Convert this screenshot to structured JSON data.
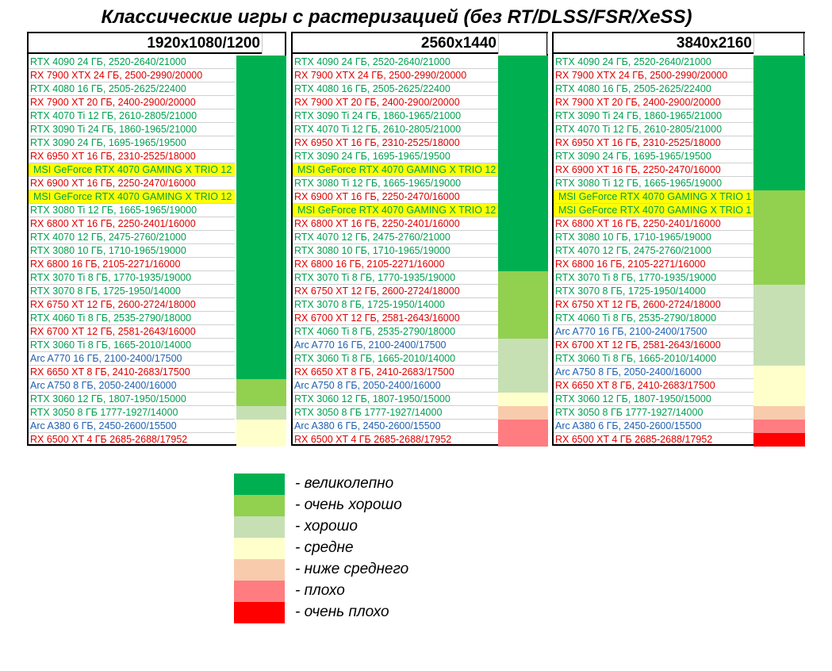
{
  "title": "Классические игры с растеризацией (без RT/DLSS/FSR/XeSS)",
  "colors": {
    "nvidia": "#00a050",
    "amd": "#e00000",
    "intel": "#2060b0",
    "highlight": "#ffff00",
    "excellent": "#00b050",
    "very_good": "#92d050",
    "good": "#c6e0b4",
    "average": "#ffffcc",
    "below_average": "#f8cbad",
    "bad": "#ff7c80",
    "very_bad": "#ff0000"
  },
  "chart_data": {
    "type": "table",
    "panels": [
      {
        "resolution": "1920x1080/1200",
        "rows": [
          {
            "name": "RTX 4090 24 ГБ, 2520-2640/21000",
            "vendor": "nvidia"
          },
          {
            "name": "RX 7900 XTX 24 ГБ, 2500-2990/20000",
            "vendor": "amd"
          },
          {
            "name": "RTX 4080 16 ГБ, 2505-2625/22400",
            "vendor": "nvidia"
          },
          {
            "name": "RX 7900 XT 20 ГБ, 2400-2900/20000",
            "vendor": "amd"
          },
          {
            "name": "RTX 4070 Ti 12 ГБ, 2610-2805/21000",
            "vendor": "nvidia"
          },
          {
            "name": "RTX 3090 Ti 24 ГБ, 1860-1965/21000",
            "vendor": "nvidia"
          },
          {
            "name": "RTX 3090 24 ГБ, 1695-1965/19500",
            "vendor": "nvidia"
          },
          {
            "name": "RX 6950 XT 16 ГБ, 2310-2525/18000",
            "vendor": "amd"
          },
          {
            "name": "MSI GeForce RTX 4070 GAMING X TRIO 12",
            "vendor": "nvidia",
            "highlight": true
          },
          {
            "name": "RX 6900 XT 16 ГБ, 2250-2470/16000",
            "vendor": "amd"
          },
          {
            "name": "MSI GeForce RTX 4070 GAMING X TRIO 12",
            "vendor": "nvidia",
            "highlight": true
          },
          {
            "name": "RTX 3080 Ti 12 ГБ, 1665-1965/19000",
            "vendor": "nvidia"
          },
          {
            "name": "RX 6800 XT 16 ГБ, 2250-2401/16000",
            "vendor": "amd"
          },
          {
            "name": "RTX 4070 12 ГБ, 2475-2760/21000",
            "vendor": "nvidia"
          },
          {
            "name": "RTX 3080 10 ГБ, 1710-1965/19000",
            "vendor": "nvidia"
          },
          {
            "name": "RX 6800 16 ГБ, 2105-2271/16000",
            "vendor": "amd"
          },
          {
            "name": "RTX 3070 Ti 8 ГБ, 1770-1935/19000",
            "vendor": "nvidia"
          },
          {
            "name": "RTX 3070 8 ГБ, 1725-1950/14000",
            "vendor": "nvidia"
          },
          {
            "name": "RX 6750 XT 12 ГБ, 2600-2724/18000",
            "vendor": "amd"
          },
          {
            "name": "RTX 4060 Ti 8 ГБ, 2535-2790/18000",
            "vendor": "nvidia"
          },
          {
            "name": "RX 6700 XT 12 ГБ, 2581-2643/16000",
            "vendor": "amd"
          },
          {
            "name": "RTX 3060 Ti 8 ГБ, 1665-2010/14000",
            "vendor": "nvidia"
          },
          {
            "name": "Arc A770 16 ГБ, 2100-2400/17500",
            "vendor": "intel"
          },
          {
            "name": "RX 6650 XT  8 ГБ, 2410-2683/17500",
            "vendor": "amd"
          },
          {
            "name": "Arc A750 8 ГБ, 2050-2400/16000",
            "vendor": "intel"
          },
          {
            "name": "RTX 3060 12 ГБ, 1807-1950/15000",
            "vendor": "nvidia"
          },
          {
            "name": "RTX 3050 8 ГБ 1777-1927/14000",
            "vendor": "nvidia"
          },
          {
            "name": "Arc A380 6 ГБ, 2450-2600/15500",
            "vendor": "intel"
          },
          {
            "name": "RX 6500 XT 4 ГБ 2685-2688/17952",
            "vendor": "amd"
          }
        ],
        "ratings": [
          {
            "rating": "excellent",
            "from_row": 1,
            "to_row": 24
          },
          {
            "rating": "very_good",
            "from_row": 25,
            "to_row": 26
          },
          {
            "rating": "good",
            "from_row": 27,
            "to_row": 27
          },
          {
            "rating": "average",
            "from_row": 28,
            "to_row": 29
          }
        ]
      },
      {
        "resolution": "2560x1440",
        "rows": [
          {
            "name": "RTX 4090 24 ГБ, 2520-2640/21000",
            "vendor": "nvidia"
          },
          {
            "name": "RX 7900 XTX 24 ГБ, 2500-2990/20000",
            "vendor": "amd"
          },
          {
            "name": "RTX 4080 16 ГБ, 2505-2625/22400",
            "vendor": "nvidia"
          },
          {
            "name": "RX 7900 XT 20 ГБ, 2400-2900/20000",
            "vendor": "amd"
          },
          {
            "name": "RTX 3090 Ti 24 ГБ, 1860-1965/21000",
            "vendor": "nvidia"
          },
          {
            "name": "RTX 4070 Ti 12 ГБ, 2610-2805/21000",
            "vendor": "nvidia"
          },
          {
            "name": "RX 6950 XT 16 ГБ, 2310-2525/18000",
            "vendor": "amd"
          },
          {
            "name": "RTX 3090 24 ГБ, 1695-1965/19500",
            "vendor": "nvidia"
          },
          {
            "name": "MSI GeForce RTX 4070 GAMING X TRIO 12",
            "vendor": "nvidia",
            "highlight": true
          },
          {
            "name": "RTX 3080 Ti 12 ГБ, 1665-1965/19000",
            "vendor": "nvidia"
          },
          {
            "name": "RX 6900 XT 16 ГБ, 2250-2470/16000",
            "vendor": "amd"
          },
          {
            "name": "MSI GeForce RTX 4070 GAMING X TRIO 12",
            "vendor": "nvidia",
            "highlight": true
          },
          {
            "name": "RX 6800 XT 16 ГБ, 2250-2401/16000",
            "vendor": "amd"
          },
          {
            "name": "RTX 4070 12 ГБ, 2475-2760/21000",
            "vendor": "nvidia"
          },
          {
            "name": "RTX 3080 10 ГБ, 1710-1965/19000",
            "vendor": "nvidia"
          },
          {
            "name": "RX 6800 16 ГБ, 2105-2271/16000",
            "vendor": "amd"
          },
          {
            "name": "RTX 3070 Ti 8 ГБ, 1770-1935/19000",
            "vendor": "nvidia"
          },
          {
            "name": "RX 6750 XT 12 ГБ, 2600-2724/18000",
            "vendor": "amd"
          },
          {
            "name": "RTX 3070 8 ГБ, 1725-1950/14000",
            "vendor": "nvidia"
          },
          {
            "name": "RX 6700 XT 12 ГБ, 2581-2643/16000",
            "vendor": "amd"
          },
          {
            "name": "RTX 4060 Ti 8 ГБ, 2535-2790/18000",
            "vendor": "nvidia"
          },
          {
            "name": "Arc A770 16 ГБ, 2100-2400/17500",
            "vendor": "intel"
          },
          {
            "name": "RTX 3060 Ti 8 ГБ, 1665-2010/14000",
            "vendor": "nvidia"
          },
          {
            "name": "RX 6650 XT  8 ГБ, 2410-2683/17500",
            "vendor": "amd"
          },
          {
            "name": "Arc A750 8 ГБ, 2050-2400/16000",
            "vendor": "intel"
          },
          {
            "name": "RTX 3060 12 ГБ, 1807-1950/15000",
            "vendor": "nvidia"
          },
          {
            "name": "RTX 3050 8 ГБ 1777-1927/14000",
            "vendor": "nvidia"
          },
          {
            "name": "Arc A380 6 ГБ, 2450-2600/15500",
            "vendor": "intel"
          },
          {
            "name": "RX 6500 XT 4 ГБ 2685-2688/17952",
            "vendor": "amd"
          }
        ],
        "ratings": [
          {
            "rating": "excellent",
            "from_row": 1,
            "to_row": 16
          },
          {
            "rating": "very_good",
            "from_row": 17,
            "to_row": 21
          },
          {
            "rating": "good",
            "from_row": 22,
            "to_row": 25
          },
          {
            "rating": "average",
            "from_row": 26,
            "to_row": 26
          },
          {
            "rating": "below_average",
            "from_row": 27,
            "to_row": 27
          },
          {
            "rating": "bad",
            "from_row": 28,
            "to_row": 29
          }
        ]
      },
      {
        "resolution": "3840x2160",
        "rows": [
          {
            "name": "RTX 4090 24 ГБ, 2520-2640/21000",
            "vendor": "nvidia"
          },
          {
            "name": "RX 7900 XTX 24 ГБ, 2500-2990/20000",
            "vendor": "amd"
          },
          {
            "name": "RTX 4080 16 ГБ, 2505-2625/22400",
            "vendor": "nvidia"
          },
          {
            "name": "RX 7900 XT 20 ГБ, 2400-2900/20000",
            "vendor": "amd"
          },
          {
            "name": "RTX 3090 Ti 24 ГБ, 1860-1965/21000",
            "vendor": "nvidia"
          },
          {
            "name": "RTX 4070 Ti 12 ГБ, 2610-2805/21000",
            "vendor": "nvidia"
          },
          {
            "name": "RX 6950 XT 16 ГБ, 2310-2525/18000",
            "vendor": "amd"
          },
          {
            "name": "RTX 3090 24 ГБ, 1695-1965/19500",
            "vendor": "nvidia"
          },
          {
            "name": "RX 6900 XT 16 ГБ, 2250-2470/16000",
            "vendor": "amd"
          },
          {
            "name": "RTX 3080 Ti 12 ГБ, 1665-1965/19000",
            "vendor": "nvidia"
          },
          {
            "name": "MSI GeForce RTX 4070 GAMING X TRIO 1",
            "vendor": "nvidia",
            "highlight": true
          },
          {
            "name": "MSI GeForce RTX 4070 GAMING X TRIO 1",
            "vendor": "nvidia",
            "highlight": true
          },
          {
            "name": "RX 6800 XT 16 ГБ, 2250-2401/16000",
            "vendor": "amd"
          },
          {
            "name": "RTX 3080 10 ГБ, 1710-1965/19000",
            "vendor": "nvidia"
          },
          {
            "name": "RTX 4070 12 ГБ, 2475-2760/21000",
            "vendor": "nvidia"
          },
          {
            "name": "RX 6800 16 ГБ, 2105-2271/16000",
            "vendor": "amd"
          },
          {
            "name": "RTX 3070 Ti 8 ГБ, 1770-1935/19000",
            "vendor": "nvidia"
          },
          {
            "name": "RTX 3070 8 ГБ, 1725-1950/14000",
            "vendor": "nvidia"
          },
          {
            "name": "RX 6750 XT 12 ГБ, 2600-2724/18000",
            "vendor": "amd"
          },
          {
            "name": "RTX 4060 Ti 8 ГБ, 2535-2790/18000",
            "vendor": "nvidia"
          },
          {
            "name": "Arc A770 16 ГБ, 2100-2400/17500",
            "vendor": "intel"
          },
          {
            "name": "RX 6700 XT 12 ГБ, 2581-2643/16000",
            "vendor": "amd"
          },
          {
            "name": "RTX 3060 Ti 8 ГБ, 1665-2010/14000",
            "vendor": "nvidia"
          },
          {
            "name": "Arc A750 8 ГБ, 2050-2400/16000",
            "vendor": "intel"
          },
          {
            "name": "RX 6650 XT  8 ГБ, 2410-2683/17500",
            "vendor": "amd"
          },
          {
            "name": "RTX 3060 12 ГБ, 1807-1950/15000",
            "vendor": "nvidia"
          },
          {
            "name": "RTX 3050 8 ГБ 1777-1927/14000",
            "vendor": "nvidia"
          },
          {
            "name": "Arc A380 6 ГБ, 2450-2600/15500",
            "vendor": "intel"
          },
          {
            "name": "RX 6500 XT 4 ГБ 2685-2688/17952",
            "vendor": "amd"
          }
        ],
        "ratings": [
          {
            "rating": "excellent",
            "from_row": 1,
            "to_row": 10
          },
          {
            "rating": "very_good",
            "from_row": 11,
            "to_row": 17
          },
          {
            "rating": "good",
            "from_row": 18,
            "to_row": 23
          },
          {
            "rating": "average",
            "from_row": 24,
            "to_row": 26
          },
          {
            "rating": "below_average",
            "from_row": 27,
            "to_row": 27
          },
          {
            "rating": "bad",
            "from_row": 28,
            "to_row": 28
          },
          {
            "rating": "very_bad",
            "from_row": 29,
            "to_row": 29
          }
        ]
      }
    ]
  },
  "legend": [
    {
      "rating": "excellent",
      "label": "- великолепно"
    },
    {
      "rating": "very_good",
      "label": "- очень хорошо"
    },
    {
      "rating": "good",
      "label": "- хорошо"
    },
    {
      "rating": "average",
      "label": "- средне"
    },
    {
      "rating": "below_average",
      "label": "- ниже среднего"
    },
    {
      "rating": "bad",
      "label": "- плохо"
    },
    {
      "rating": "very_bad",
      "label": "- очень плохо"
    }
  ]
}
